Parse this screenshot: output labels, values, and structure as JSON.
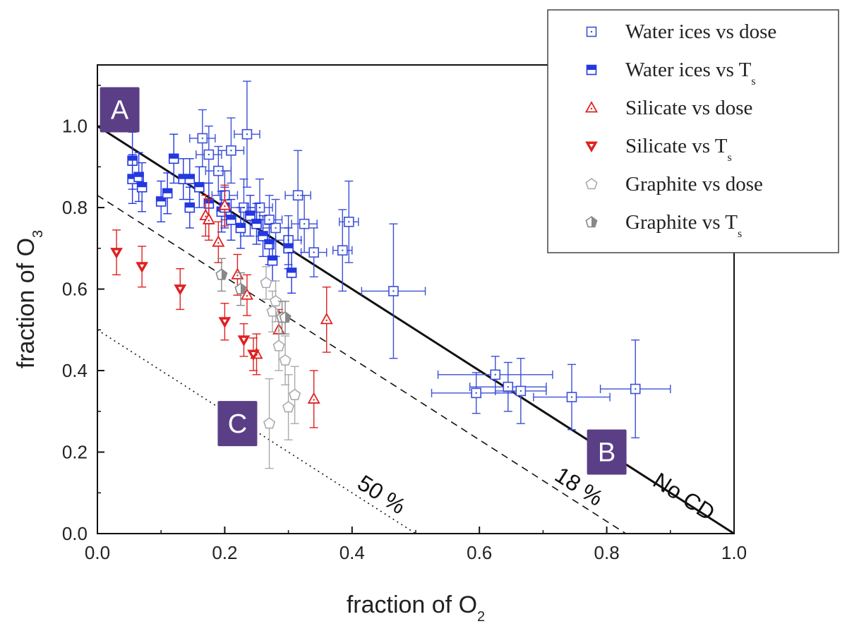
{
  "chart_data": {
    "type": "scatter",
    "xlabel": "fraction of O",
    "xlabel_sub": "2",
    "ylabel": "fraction of O",
    "ylabel_sub": "3",
    "xlim": [
      0,
      1
    ],
    "ylim": [
      0,
      1.15
    ],
    "xticks": [
      0.0,
      0.2,
      0.4,
      0.6,
      0.8,
      1.0
    ],
    "xtick_labels": [
      "0.0",
      "0.2",
      "0.4",
      "0.6",
      "0.8",
      "1.0"
    ],
    "yticks": [
      0.0,
      0.2,
      0.4,
      0.6,
      0.8,
      1.0
    ],
    "ytick_labels": [
      "0.0",
      "0.2",
      "0.4",
      "0.6",
      "0.8",
      "1.0"
    ],
    "legend_position": "top-right",
    "lines": [
      {
        "id": "no-cd",
        "style": "solid",
        "x": [
          0,
          1
        ],
        "y": [
          1,
          0
        ],
        "label": "No CD",
        "label_at": [
          0.915,
          0.075
        ]
      },
      {
        "id": "18pct",
        "style": "dashed",
        "x": [
          0,
          0.83
        ],
        "y": [
          0.83,
          0
        ],
        "label": "18 %",
        "label_at": [
          0.75,
          0.1
        ]
      },
      {
        "id": "50pct",
        "style": "dotted",
        "x": [
          0,
          0.5
        ],
        "y": [
          0.5,
          0
        ],
        "label": "50 %",
        "label_at": [
          0.44,
          0.08
        ]
      }
    ],
    "boxes": [
      {
        "label": "A",
        "x": 0.035,
        "y": 1.04
      },
      {
        "label": "B",
        "x": 0.8,
        "y": 0.2
      },
      {
        "label": "C",
        "x": 0.22,
        "y": 0.27
      }
    ],
    "series": [
      {
        "name": "Water ices vs dose",
        "name_sub": "",
        "marker": "square-open",
        "color": "#3a4fd8",
        "points": [
          {
            "x": 0.165,
            "y": 0.97,
            "xerr": 0.02,
            "yerr": 0.07
          },
          {
            "x": 0.175,
            "y": 0.93,
            "xerr": 0.02,
            "yerr": 0.07
          },
          {
            "x": 0.21,
            "y": 0.94,
            "xerr": 0.02,
            "yerr": 0.08
          },
          {
            "x": 0.235,
            "y": 0.98,
            "xerr": 0.02,
            "yerr": 0.13
          },
          {
            "x": 0.19,
            "y": 0.89,
            "xerr": 0.02,
            "yerr": 0.06
          },
          {
            "x": 0.2,
            "y": 0.83,
            "xerr": 0.02,
            "yerr": 0.06
          },
          {
            "x": 0.23,
            "y": 0.8,
            "xerr": 0.02,
            "yerr": 0.07
          },
          {
            "x": 0.255,
            "y": 0.8,
            "xerr": 0.02,
            "yerr": 0.07
          },
          {
            "x": 0.27,
            "y": 0.77,
            "xerr": 0.02,
            "yerr": 0.06
          },
          {
            "x": 0.28,
            "y": 0.75,
            "xerr": 0.02,
            "yerr": 0.07
          },
          {
            "x": 0.3,
            "y": 0.72,
            "xerr": 0.02,
            "yerr": 0.06
          },
          {
            "x": 0.315,
            "y": 0.83,
            "xerr": 0.02,
            "yerr": 0.11
          },
          {
            "x": 0.325,
            "y": 0.76,
            "xerr": 0.02,
            "yerr": 0.07
          },
          {
            "x": 0.34,
            "y": 0.69,
            "xerr": 0.02,
            "yerr": 0.06
          },
          {
            "x": 0.385,
            "y": 0.695,
            "xerr": 0.015,
            "yerr": 0.1
          },
          {
            "x": 0.395,
            "y": 0.765,
            "xerr": 0.015,
            "yerr": 0.1
          },
          {
            "x": 0.465,
            "y": 0.595,
            "xerr": 0.05,
            "yerr": 0.165
          },
          {
            "x": 0.595,
            "y": 0.345,
            "xerr": 0.07,
            "yerr": 0.05
          },
          {
            "x": 0.625,
            "y": 0.39,
            "xerr": 0.09,
            "yerr": 0.045
          },
          {
            "x": 0.645,
            "y": 0.36,
            "xerr": 0.06,
            "yerr": 0.06
          },
          {
            "x": 0.665,
            "y": 0.35,
            "xerr": 0.04,
            "yerr": 0.08
          },
          {
            "x": 0.745,
            "y": 0.335,
            "xerr": 0.06,
            "yerr": 0.08
          },
          {
            "x": 0.845,
            "y": 0.355,
            "xerr": 0.055,
            "yerr": 0.12
          }
        ]
      },
      {
        "name": "Water ices vs T",
        "name_sub": "s",
        "marker": "square-half",
        "color": "#2338e0",
        "points": [
          {
            "x": 0.055,
            "y": 0.915,
            "xerr": 0,
            "yerr": 0.07
          },
          {
            "x": 0.055,
            "y": 0.87,
            "xerr": 0,
            "yerr": 0.06
          },
          {
            "x": 0.065,
            "y": 0.875,
            "xerr": 0,
            "yerr": 0.06
          },
          {
            "x": 0.07,
            "y": 0.85,
            "xerr": 0,
            "yerr": 0.06
          },
          {
            "x": 0.1,
            "y": 0.815,
            "xerr": 0,
            "yerr": 0.05
          },
          {
            "x": 0.11,
            "y": 0.835,
            "xerr": 0,
            "yerr": 0.05
          },
          {
            "x": 0.12,
            "y": 0.92,
            "xerr": 0,
            "yerr": 0.06
          },
          {
            "x": 0.135,
            "y": 0.87,
            "xerr": 0,
            "yerr": 0.05
          },
          {
            "x": 0.145,
            "y": 0.87,
            "xerr": 0,
            "yerr": 0.05
          },
          {
            "x": 0.145,
            "y": 0.8,
            "xerr": 0,
            "yerr": 0.05
          },
          {
            "x": 0.16,
            "y": 0.85,
            "xerr": 0,
            "yerr": 0.05
          },
          {
            "x": 0.175,
            "y": 0.81,
            "xerr": 0,
            "yerr": 0.05
          },
          {
            "x": 0.195,
            "y": 0.79,
            "xerr": 0,
            "yerr": 0.05
          },
          {
            "x": 0.2,
            "y": 0.8,
            "xerr": 0,
            "yerr": 0.05
          },
          {
            "x": 0.21,
            "y": 0.77,
            "xerr": 0,
            "yerr": 0.05
          },
          {
            "x": 0.225,
            "y": 0.75,
            "xerr": 0,
            "yerr": 0.05
          },
          {
            "x": 0.24,
            "y": 0.78,
            "xerr": 0,
            "yerr": 0.05
          },
          {
            "x": 0.25,
            "y": 0.76,
            "xerr": 0,
            "yerr": 0.05
          },
          {
            "x": 0.26,
            "y": 0.73,
            "xerr": 0,
            "yerr": 0.05
          },
          {
            "x": 0.27,
            "y": 0.71,
            "xerr": 0,
            "yerr": 0.05
          },
          {
            "x": 0.275,
            "y": 0.67,
            "xerr": 0,
            "yerr": 0.05
          },
          {
            "x": 0.3,
            "y": 0.7,
            "xerr": 0,
            "yerr": 0.05
          },
          {
            "x": 0.305,
            "y": 0.64,
            "xerr": 0,
            "yerr": 0.05
          }
        ]
      },
      {
        "name": "Silicate vs dose",
        "name_sub": "",
        "marker": "triangle-up-open",
        "color": "#e02020",
        "points": [
          {
            "x": 0.17,
            "y": 0.78,
            "xerr": 0,
            "yerr": 0.05
          },
          {
            "x": 0.175,
            "y": 0.77,
            "xerr": 0,
            "yerr": 0.05
          },
          {
            "x": 0.19,
            "y": 0.715,
            "xerr": 0,
            "yerr": 0.05
          },
          {
            "x": 0.2,
            "y": 0.805,
            "xerr": 0,
            "yerr": 0.05
          },
          {
            "x": 0.22,
            "y": 0.635,
            "xerr": 0,
            "yerr": 0.05
          },
          {
            "x": 0.235,
            "y": 0.585,
            "xerr": 0,
            "yerr": 0.05
          },
          {
            "x": 0.25,
            "y": 0.44,
            "xerr": 0,
            "yerr": 0.05
          },
          {
            "x": 0.285,
            "y": 0.5,
            "xerr": 0,
            "yerr": 0.05
          },
          {
            "x": 0.36,
            "y": 0.525,
            "xerr": 0,
            "yerr": 0.08
          },
          {
            "x": 0.34,
            "y": 0.33,
            "xerr": 0,
            "yerr": 0.07
          }
        ]
      },
      {
        "name": "Silicate vs T",
        "name_sub": "s",
        "marker": "triangle-down-filled",
        "color": "#e02020",
        "points": [
          {
            "x": 0.03,
            "y": 0.69,
            "xerr": 0,
            "yerr": 0.055
          },
          {
            "x": 0.07,
            "y": 0.655,
            "xerr": 0,
            "yerr": 0.05
          },
          {
            "x": 0.13,
            "y": 0.6,
            "xerr": 0,
            "yerr": 0.05
          },
          {
            "x": 0.2,
            "y": 0.52,
            "xerr": 0,
            "yerr": 0.045
          },
          {
            "x": 0.23,
            "y": 0.475,
            "xerr": 0,
            "yerr": 0.04
          },
          {
            "x": 0.245,
            "y": 0.44,
            "xerr": 0,
            "yerr": 0.04
          }
        ]
      },
      {
        "name": "Graphite vs dose",
        "name_sub": "",
        "marker": "pentagon-open",
        "color": "#aaaaaa",
        "points": [
          {
            "x": 0.265,
            "y": 0.615,
            "xerr": 0,
            "yerr": 0.04
          },
          {
            "x": 0.275,
            "y": 0.545,
            "xerr": 0,
            "yerr": 0.05
          },
          {
            "x": 0.28,
            "y": 0.57,
            "xerr": 0,
            "yerr": 0.05
          },
          {
            "x": 0.285,
            "y": 0.46,
            "xerr": 0,
            "yerr": 0.06
          },
          {
            "x": 0.295,
            "y": 0.425,
            "xerr": 0,
            "yerr": 0.06
          },
          {
            "x": 0.3,
            "y": 0.31,
            "xerr": 0,
            "yerr": 0.08
          },
          {
            "x": 0.31,
            "y": 0.34,
            "xerr": 0,
            "yerr": 0.07
          },
          {
            "x": 0.27,
            "y": 0.27,
            "xerr": 0,
            "yerr": 0.11
          }
        ]
      },
      {
        "name": "Graphite vs T",
        "name_sub": "s",
        "marker": "pentagon-half",
        "color": "#888888",
        "points": [
          {
            "x": 0.195,
            "y": 0.635,
            "xerr": 0,
            "yerr": 0.04
          },
          {
            "x": 0.225,
            "y": 0.6,
            "xerr": 0,
            "yerr": 0.04
          },
          {
            "x": 0.29,
            "y": 0.53,
            "xerr": 0,
            "yerr": 0.04
          },
          {
            "x": 0.295,
            "y": 0.53,
            "xerr": 0,
            "yerr": 0.04
          }
        ]
      }
    ]
  }
}
